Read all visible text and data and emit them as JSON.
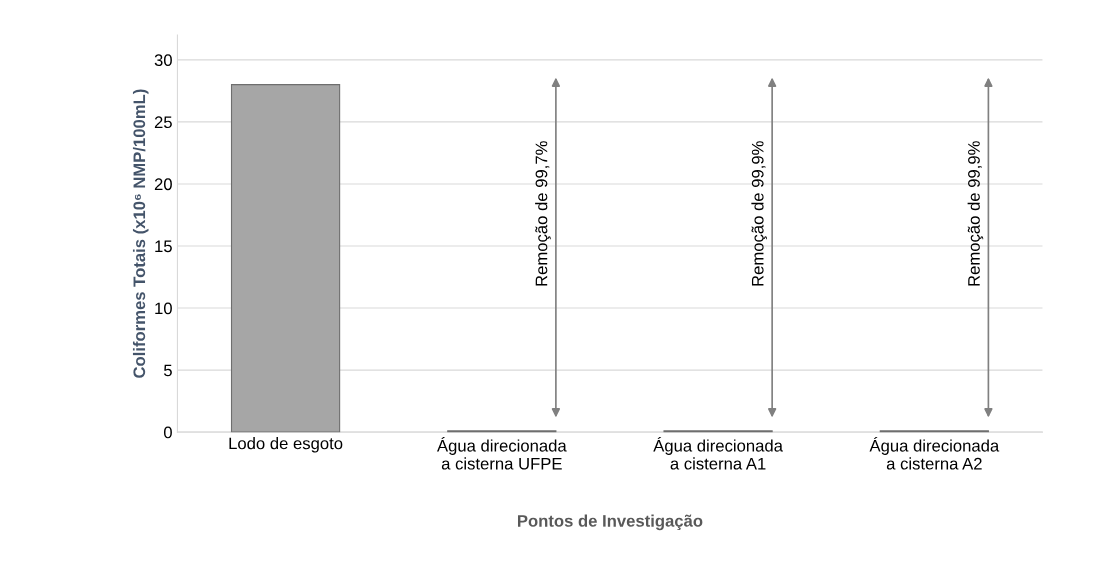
{
  "chart_data": {
    "type": "bar",
    "categories": [
      "Lodo de esgoto",
      "Água direcionada\na cisterna UFPE",
      "Água direcionada\na cisterna A1",
      "Água direcionada\na cisterna A2"
    ],
    "values": [
      28,
      0.1,
      0.1,
      0.1
    ],
    "color": "#a6a6a6",
    "xlabel": "Pontos de Investigação",
    "ylabel": "Coliformes Totais (x10⁶ NMP/100mL)",
    "ylim": [
      0,
      32
    ],
    "yticks": [
      0,
      5,
      10,
      15,
      20,
      25,
      30
    ],
    "grid": "y",
    "annotations": [
      "Remoção de 99,7%",
      "Remoção de 99,9%",
      "Remoção de 99,9%"
    ]
  }
}
